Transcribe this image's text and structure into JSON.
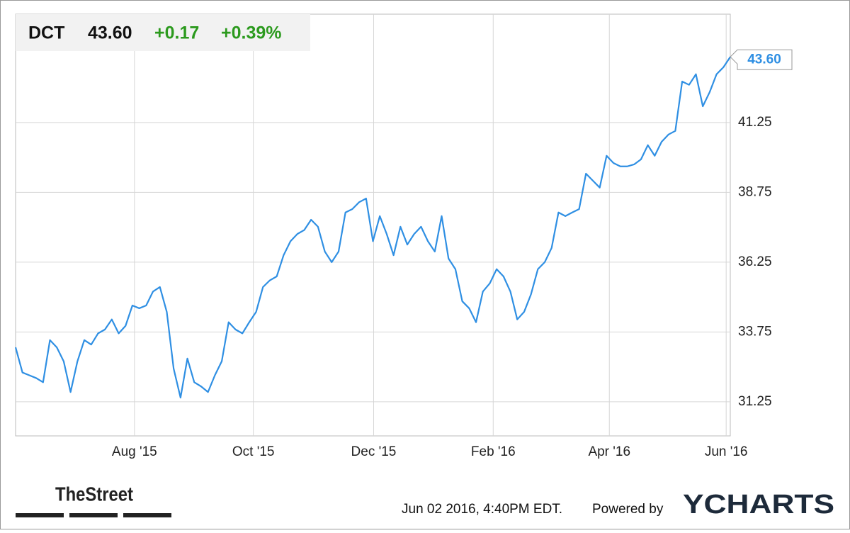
{
  "chart_data": {
    "type": "line",
    "header": {
      "symbol": "DCT",
      "price": "43.60",
      "change": "+0.17",
      "change_percent": "+0.39%"
    },
    "series": [
      {
        "name": "DCT",
        "color": "#2f8fe3",
        "values": [
          33.2,
          32.3,
          32.2,
          32.1,
          31.95,
          33.46,
          33.2,
          32.7,
          31.6,
          32.7,
          33.46,
          33.3,
          33.7,
          33.84,
          34.2,
          33.7,
          33.97,
          34.7,
          34.6,
          34.7,
          35.2,
          35.36,
          34.47,
          32.44,
          31.4,
          32.8,
          31.95,
          31.8,
          31.6,
          32.2,
          32.7,
          34.1,
          33.84,
          33.7,
          34.1,
          34.47,
          35.36,
          35.6,
          35.74,
          36.5,
          37.0,
          37.26,
          37.4,
          37.77,
          37.52,
          36.63,
          36.25,
          36.63,
          38.03,
          38.15,
          38.4,
          38.53,
          37.0,
          37.9,
          37.26,
          36.5,
          37.52,
          36.88,
          37.26,
          37.52,
          37.0,
          36.63,
          37.9,
          36.38,
          36.0,
          34.85,
          34.6,
          34.1,
          35.2,
          35.49,
          36.0,
          35.74,
          35.2,
          34.2,
          34.47,
          35.1,
          36.0,
          36.25,
          36.76,
          38.03,
          37.9,
          38.03,
          38.15,
          39.42,
          39.17,
          38.92,
          40.06,
          39.8,
          39.68,
          39.68,
          39.75,
          39.93,
          40.44,
          40.06,
          40.56,
          40.82,
          40.95,
          42.72,
          42.6,
          42.98,
          41.83,
          42.34,
          42.98,
          43.23,
          43.6
        ]
      }
    ],
    "xlim": [
      0,
      104
    ],
    "xticks": [
      {
        "value": 17.3,
        "label": "Aug '15"
      },
      {
        "value": 34.6,
        "label": "Oct '15"
      },
      {
        "value": 52.1,
        "label": "Dec '15"
      },
      {
        "value": 69.5,
        "label": "Feb '16"
      },
      {
        "value": 86.4,
        "label": "Apr '16"
      },
      {
        "value": 103.4,
        "label": "Jun '16"
      }
    ],
    "ylim": [
      30.03,
      45.13
    ],
    "yticks": [
      31.25,
      33.75,
      36.25,
      38.75,
      41.25
    ],
    "grid": true,
    "source": "TheStreet",
    "timestamp": "Jun 02 2016, 4:40PM EDT.",
    "credit": "Powered by",
    "brand": "YCHARTS"
  }
}
